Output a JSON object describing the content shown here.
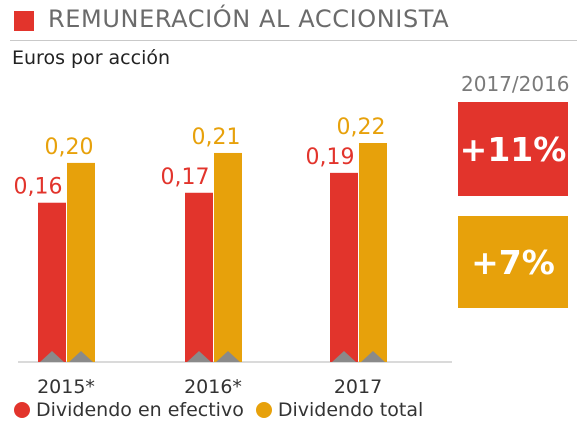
{
  "header": {
    "title": "REMUNERACIÓN AL ACCIONISTA",
    "subtitle": "Euros por acción"
  },
  "comparison": {
    "period": "2017/2016",
    "cash_change": "+11%",
    "total_change": "+7%"
  },
  "colors": {
    "cash": "#e2342c",
    "total": "#e7a10b",
    "baseline_marker": "#8a8a8a"
  },
  "chart_data": {
    "type": "bar",
    "categories": [
      "2015*",
      "2016*",
      "2017"
    ],
    "series": [
      {
        "name": "Dividendo en efectivo",
        "values": [
          0.16,
          0.17,
          0.19
        ],
        "labels": [
          "0,16",
          "0,17",
          "0,19"
        ]
      },
      {
        "name": "Dividendo total",
        "values": [
          0.2,
          0.21,
          0.22
        ],
        "labels": [
          "0,20",
          "0,21",
          "0,22"
        ]
      }
    ],
    "ylim": [
      0,
      0.22
    ],
    "legend": "bottom",
    "grid": false
  }
}
